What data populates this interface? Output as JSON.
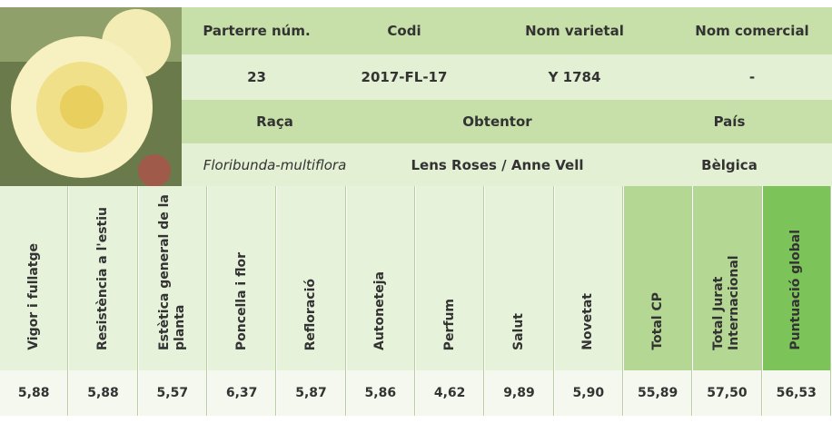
{
  "info": {
    "row1": [
      "Parterre núm.",
      "Codi",
      "Nom varietal",
      "Nom comercial"
    ],
    "row2": [
      "23",
      "2017-FL-17",
      "Y 1784",
      "-"
    ],
    "row3": [
      "Raça",
      "Obtentor",
      "País"
    ],
    "row4": [
      "Floribunda-multiflora",
      "Lens Roses / Anne Vell",
      "Bèlgica"
    ]
  },
  "scores": {
    "headers": [
      "Vigor i fullatge",
      "Resistència a l'estiu",
      "Estètica general de la planta",
      "Poncella i flor",
      "Refloració",
      "Autoneteja",
      "Perfum",
      "Salut",
      "Novetat",
      "Total CP",
      "Total Jurat Internacional",
      "Puntuació global"
    ],
    "values": [
      "5,88",
      "5,88",
      "5,57",
      "6,37",
      "5,87",
      "5,86",
      "4,62",
      "9,89",
      "5,90",
      "55,89",
      "57,50",
      "56,53"
    ]
  }
}
